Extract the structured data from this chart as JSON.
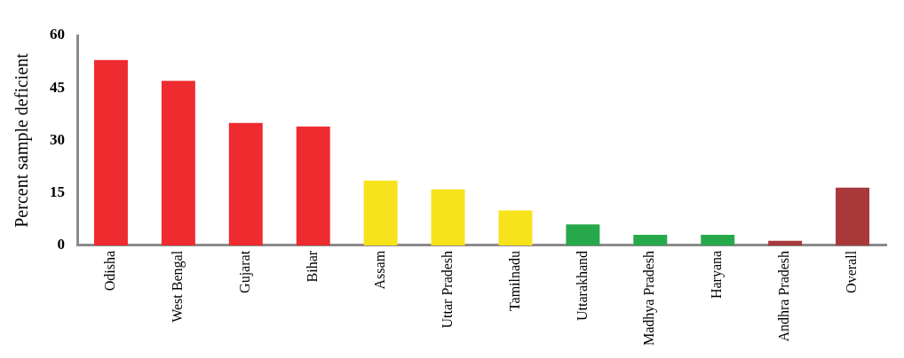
{
  "chart_data": {
    "type": "bar",
    "ylabel": "Percent sample deficient",
    "categories": [
      "Odisha",
      "West Bengal",
      "Gujarat",
      "Bihar",
      "Assam",
      "Uttar Pradesh",
      "Tamilnadu",
      "Uttarakhand",
      "Madhya Pradesh",
      "Haryana",
      "Andhra Pradesh",
      "Overall"
    ],
    "values": [
      53,
      47,
      35,
      34,
      18.5,
      16,
      10,
      6,
      3,
      3,
      1.3,
      16.5
    ],
    "colors": [
      "#ee2b2f",
      "#ee2b2f",
      "#ee2b2f",
      "#ee2b2f",
      "#f7e31c",
      "#f7e31c",
      "#f7e31c",
      "#27a84a",
      "#27a84a",
      "#27a84a",
      "#a8383a",
      "#a8383a"
    ],
    "ylim": [
      0,
      60
    ],
    "yticks": [
      0,
      15,
      30,
      45,
      60
    ],
    "grid": false,
    "legend": false
  }
}
